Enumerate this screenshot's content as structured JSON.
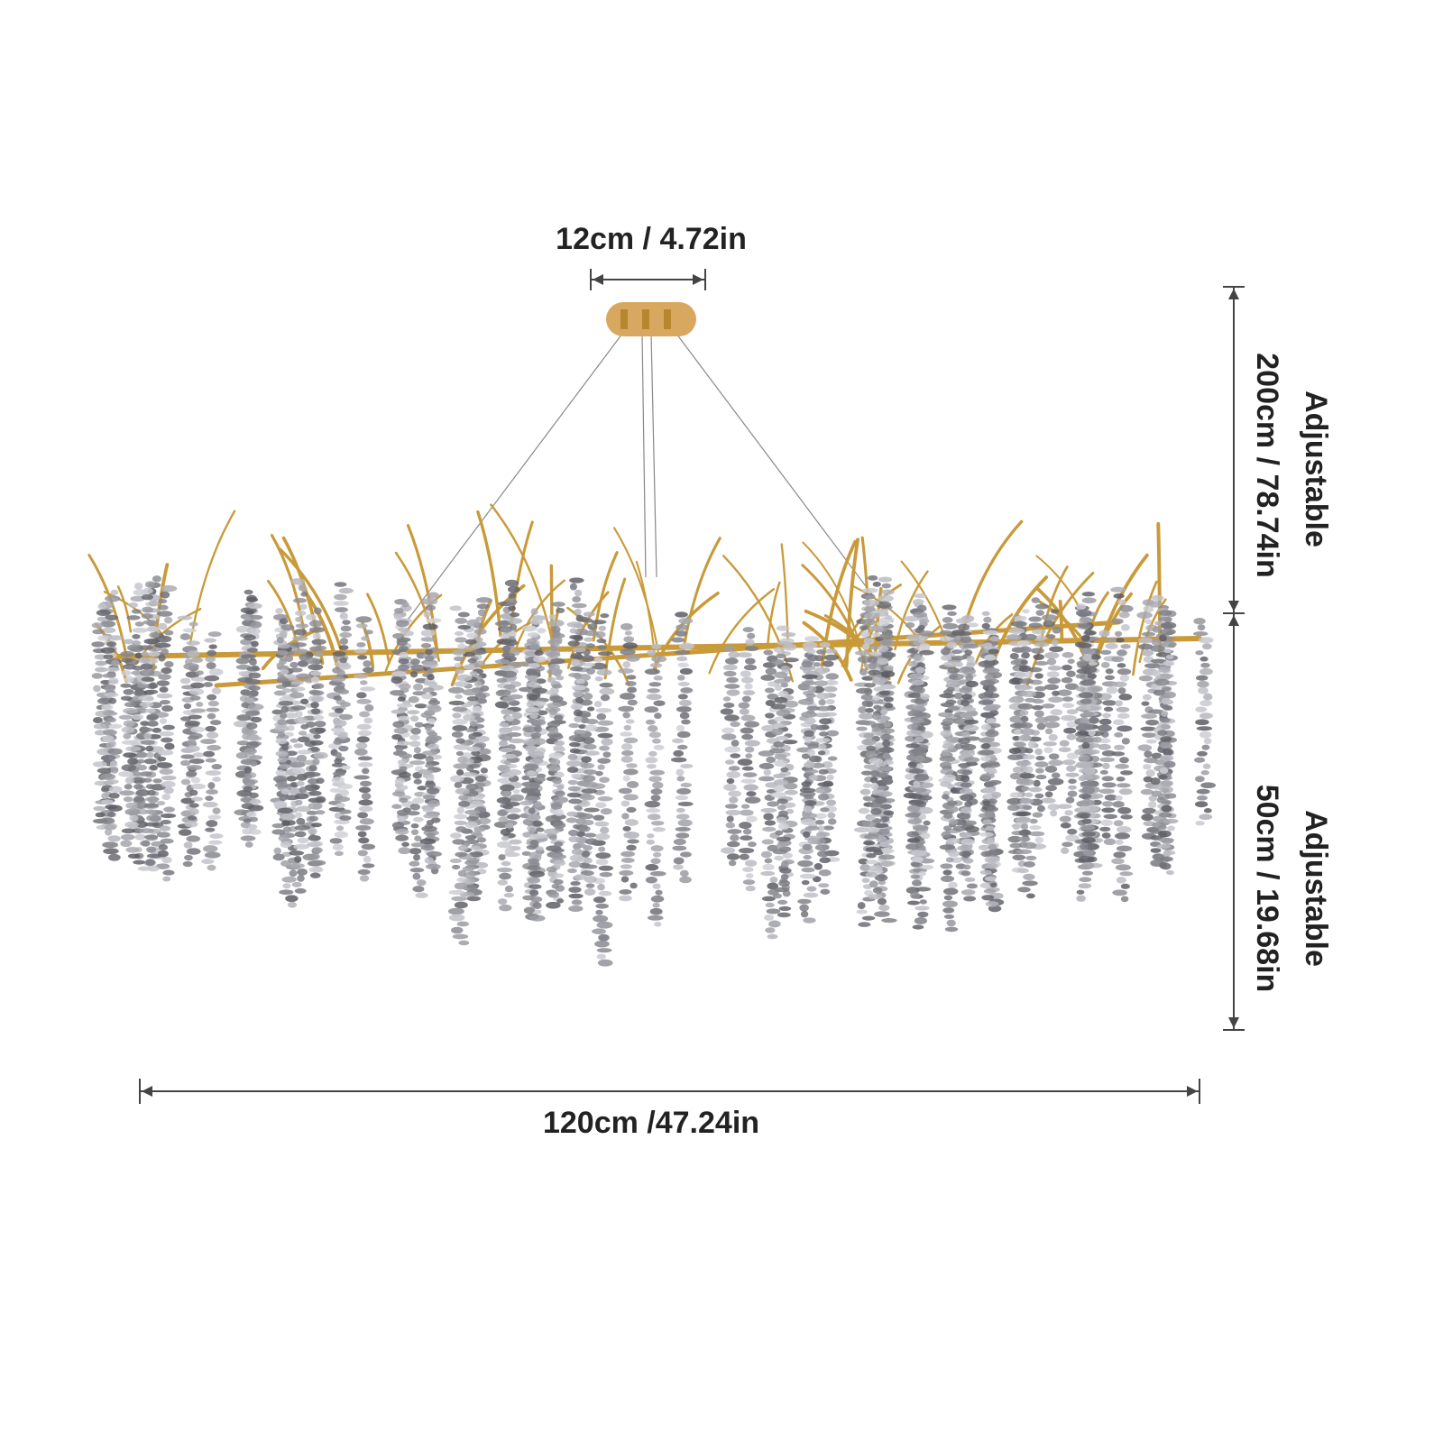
{
  "dimensions": {
    "canopy_width": "12cm / 4.72in",
    "total_width": "120cm /47.24in",
    "cable_height": {
      "title": "Adjustable",
      "value": "200cm / 78.74in"
    },
    "strand_height": {
      "title": "Adjustable",
      "value": "50cm / 19.68in"
    }
  }
}
